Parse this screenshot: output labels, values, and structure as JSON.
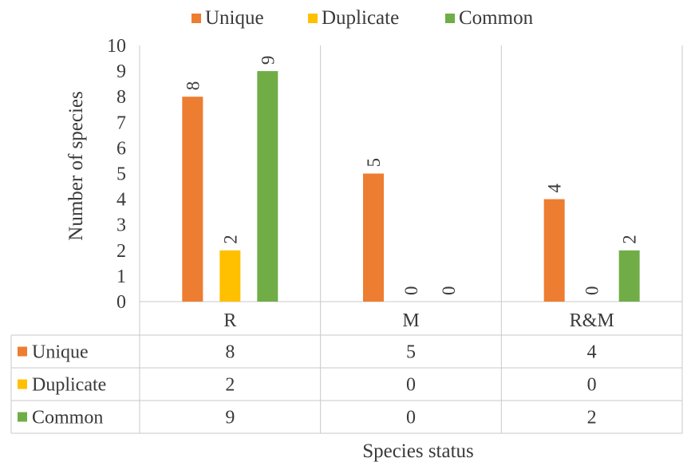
{
  "chart_data": {
    "type": "bar",
    "title": "",
    "categories": [
      "R",
      "M",
      "R&M"
    ],
    "series": [
      {
        "name": "Unique",
        "values": [
          8,
          5,
          4
        ],
        "color": "#ED7D31"
      },
      {
        "name": "Duplicate",
        "values": [
          2,
          0,
          0
        ],
        "color": "#FFC000"
      },
      {
        "name": "Common",
        "values": [
          9,
          0,
          2
        ],
        "color": "#70AD47"
      }
    ],
    "xlabel": "Species status",
    "ylabel": "Number of species",
    "ylim": [
      0,
      10
    ],
    "yticks": [
      "0",
      "1",
      "2",
      "3",
      "4",
      "5",
      "6",
      "7",
      "8",
      "9",
      "10"
    ],
    "legend": "top",
    "data_labels": true,
    "data_table": true,
    "grid": "vertical category separators"
  }
}
